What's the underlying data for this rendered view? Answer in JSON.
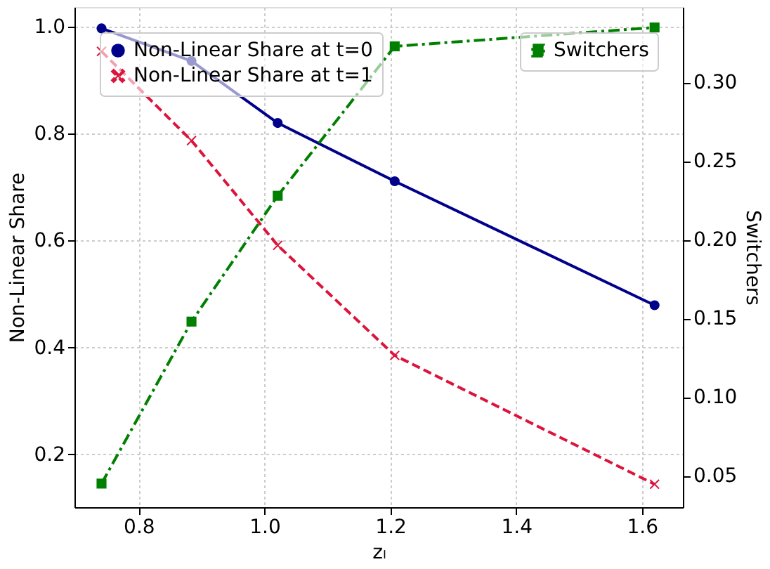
{
  "chart_data": {
    "type": "line",
    "xlabel": "zₗ",
    "ylabel": "Non-Linear Share",
    "y2label": "Switchers",
    "x": [
      0.741,
      0.884,
      1.021,
      1.207,
      1.62
    ],
    "series": [
      {
        "name": "Non-Linear Share at t=0",
        "color": "#00008b",
        "values": [
          0.997,
          0.936,
          0.82,
          0.711,
          0.479
        ],
        "marker": "circle",
        "line_style": "solid"
      },
      {
        "name": "Non-Linear Share at t=1",
        "color": "#dc143c",
        "values": [
          0.954,
          0.787,
          0.591,
          0.385,
          0.144
        ],
        "marker": "cross",
        "line_style": "dashed"
      },
      {
        "name": "Switchers",
        "color": "#008000",
        "values": [
          0.045,
          0.148,
          0.228,
          0.323,
          0.335
        ],
        "marker": "square",
        "line_style": "dashdot",
        "axis": "y2"
      }
    ],
    "xlim": [
      0.698,
      1.665
    ],
    "xticks": [
      0.8,
      {
        "value": 1,
        "label": "1.0"
      },
      1.2,
      1.4,
      1.6
    ],
    "ylim": [
      0.101,
      1.037
    ],
    "yticks": [
      0.2,
      0.4,
      0.6,
      0.8,
      {
        "value": 1,
        "label": "1.0"
      }
    ],
    "y2lim": [
      0.03,
      0.348
    ],
    "y2ticks": [
      0.05,
      {
        "value": 0.1,
        "label": "0.10"
      },
      0.15,
      {
        "value": 0.2,
        "label": "0.20"
      },
      0.25,
      {
        "value": 0.3,
        "label": "0.30"
      }
    ],
    "grid": true,
    "legend": "top"
  }
}
